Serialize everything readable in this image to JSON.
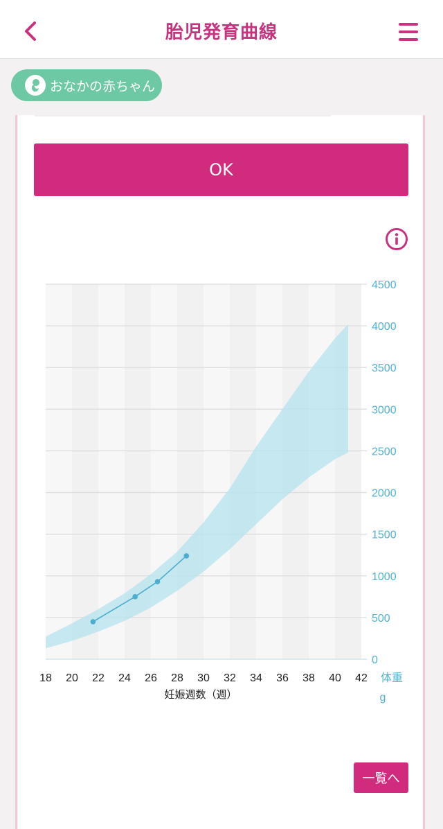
{
  "header": {
    "title": "胎児発育曲線"
  },
  "profile_pill": {
    "label": "おなかの赤ちゃん"
  },
  "ok_button": {
    "label": "OK"
  },
  "list_button": {
    "label": "一覧へ"
  },
  "colors": {
    "accent": "#d12b7d",
    "title": "#c8327f",
    "pill": "#6dc9a3",
    "series": "#4aaed0",
    "band": "#b9e4ee",
    "axis_right": "#4fb3d4"
  },
  "chart_data": {
    "type": "line",
    "xlabel": "妊娠週数（週）",
    "ylabel": "体重",
    "yunit": "g",
    "xlim": [
      18,
      42
    ],
    "ylim": [
      0,
      4500
    ],
    "x_ticks": [
      "18",
      "20",
      "22",
      "24",
      "26",
      "28",
      "30",
      "32",
      "34",
      "36",
      "38",
      "40",
      "42"
    ],
    "y_ticks": [
      "0",
      "500",
      "1000",
      "1500",
      "2000",
      "2500",
      "3000",
      "3500",
      "4000",
      "4500"
    ],
    "grid": true,
    "normal_range": {
      "x": [
        18,
        20,
        22,
        24,
        26,
        28,
        30,
        32,
        34,
        36,
        38,
        40,
        41
      ],
      "lower": [
        130,
        220,
        330,
        460,
        620,
        820,
        1050,
        1320,
        1620,
        1920,
        2180,
        2400,
        2480
      ],
      "upper": [
        270,
        430,
        600,
        790,
        1020,
        1290,
        1640,
        2050,
        2550,
        3000,
        3450,
        3850,
        4020
      ]
    },
    "series": [
      {
        "x": [
          21.6,
          24.8,
          26.5,
          28.7
        ],
        "values": [
          450,
          750,
          930,
          1240
        ]
      }
    ]
  }
}
